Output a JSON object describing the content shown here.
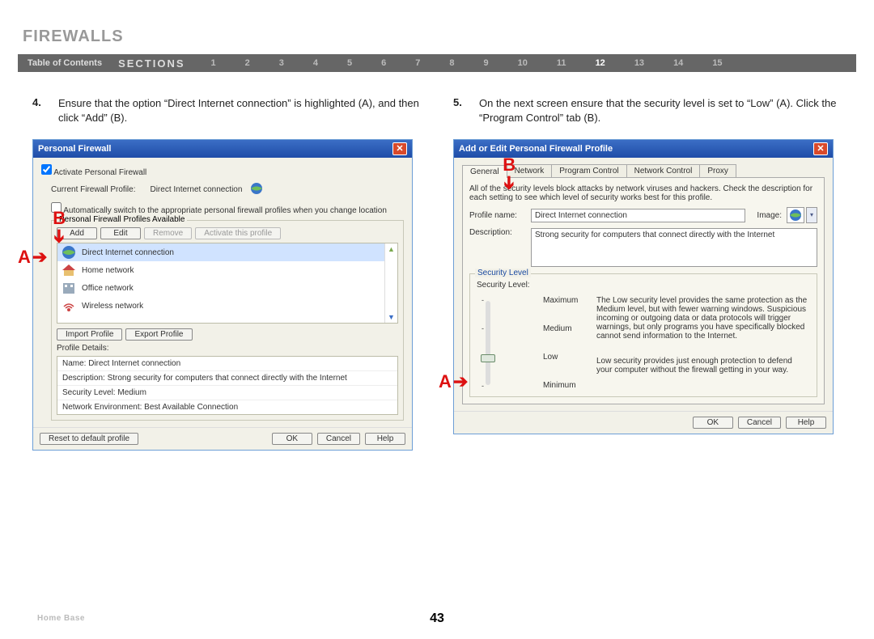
{
  "page": {
    "title": "FIREWALLS",
    "toc_label": "Table of Contents",
    "sections_label": "SECTIONS",
    "section_numbers": [
      "1",
      "2",
      "3",
      "4",
      "5",
      "6",
      "7",
      "8",
      "9",
      "10",
      "11",
      "12",
      "13",
      "14",
      "15"
    ],
    "current_section": "12",
    "footer_left": "Home Base",
    "page_number": "43"
  },
  "left": {
    "step_num": "4.",
    "step_text": "Ensure that the option “Direct Internet connection” is highlighted (A), and then click “Add” (B).",
    "dlg_title": "Personal Firewall",
    "activate_chk": "Activate Personal Firewall",
    "cur_profile_label": "Current Firewall Profile:",
    "cur_profile_value": "Direct Internet connection",
    "auto_switch": "Automatically switch to the appropriate personal firewall profiles when you change location",
    "profiles_group": "Personal Firewall Profiles Available",
    "btn_add": "Add",
    "btn_edit": "Edit",
    "btn_remove": "Remove",
    "btn_activate": "Activate this profile",
    "profiles": [
      {
        "label": "Direct Internet connection",
        "selected": true,
        "icon": "globe"
      },
      {
        "label": "Home network",
        "selected": false,
        "icon": "house"
      },
      {
        "label": "Office network",
        "selected": false,
        "icon": "office"
      },
      {
        "label": "Wireless network",
        "selected": false,
        "icon": "wifi"
      }
    ],
    "btn_import": "Import Profile",
    "btn_export": "Export Profile",
    "details_label": "Profile Details:",
    "details": {
      "name": "Name: Direct Internet connection",
      "desc": "Description: Strong security for computers that connect directly with the Internet",
      "sec": "Security Level: Medium",
      "net": "Network Environment: Best Available Connection"
    },
    "btn_reset": "Reset to default profile",
    "btn_ok": "OK",
    "btn_cancel": "Cancel",
    "btn_help": "Help",
    "callout_A": "A",
    "callout_B": "B"
  },
  "right": {
    "step_num": "5.",
    "step_text": "On the next screen ensure that the security level is set to “Low” (A). Click the “Program Control” tab (B).",
    "dlg_title": "Add or Edit Personal Firewall Profile",
    "tabs": [
      "General",
      "Network",
      "Program Control",
      "Network Control",
      "Proxy"
    ],
    "active_tab": "General",
    "help_text": "All of the security levels block attacks by network viruses and hackers. Check the description for each setting to see which level of security works best for this profile.",
    "profile_name_label": "Profile name:",
    "profile_name_value": "Direct Internet connection",
    "image_label": "Image:",
    "desc_label": "Description:",
    "desc_value": "Strong security for computers that connect directly with the Internet",
    "sec_group": "Security Level",
    "sec_label": "Security Level:",
    "levels": [
      "Maximum",
      "Medium",
      "Low",
      "Minimum"
    ],
    "current_level": "Low",
    "level_text_high": "The Low security level provides the same protection as the Medium level, but with fewer warning windows. Suspicious incoming or outgoing data or data protocols will trigger warnings, but only programs you have specifically blocked cannot send information to the Internet.",
    "level_text_low": "Low security provides just enough protection to defend your computer without the firewall getting in your way.",
    "btn_ok": "OK",
    "btn_cancel": "Cancel",
    "btn_help": "Help",
    "callout_A": "A",
    "callout_B": "B"
  },
  "colors": {
    "titlebar_top": "#3b6ec5",
    "titlebar_bottom": "#1f4da8",
    "dialog_bg": "#f2f1e8",
    "callout": "#d11a1a",
    "navbar_bg": "#666666",
    "selected_row": "#d0e3ff"
  }
}
